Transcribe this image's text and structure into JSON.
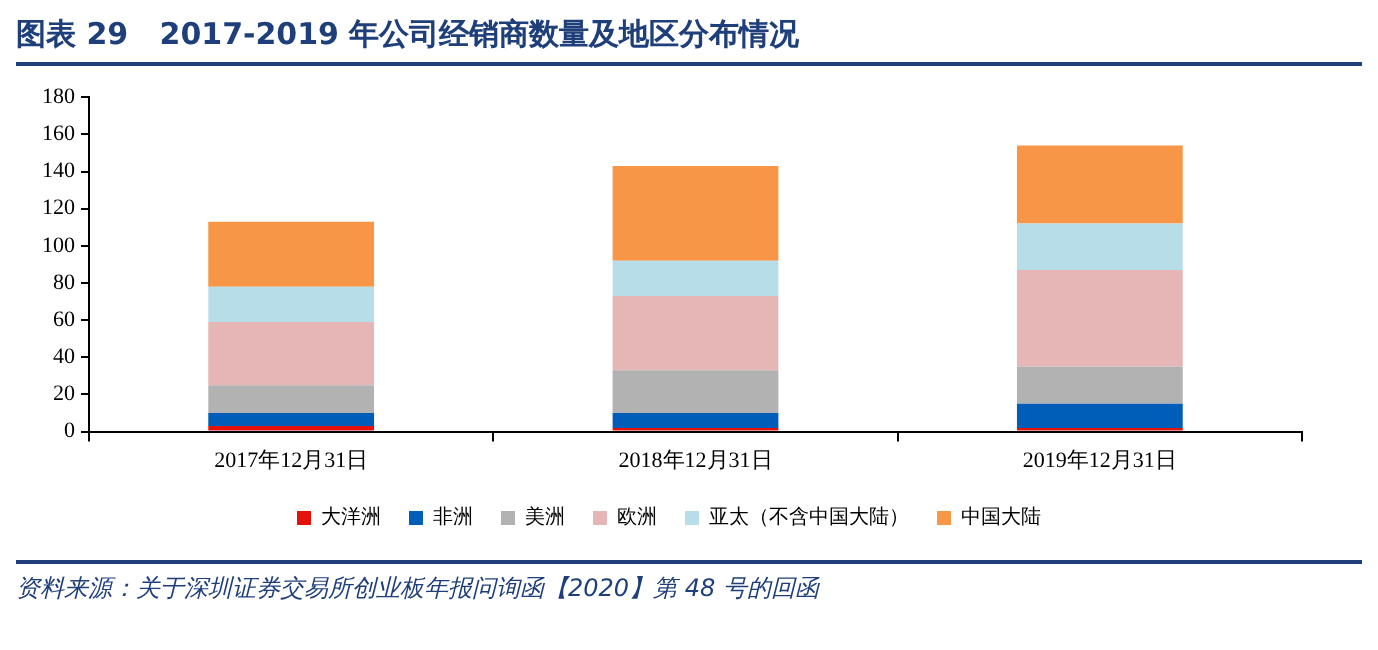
{
  "chart_data": {
    "type": "bar",
    "stacked": true,
    "title": "图表 29   2017-2019 年公司经销商数量及地区分布情况",
    "categories": [
      "2017年12月31日",
      "2018年12月31日",
      "2019年12月31日"
    ],
    "series": [
      {
        "name": "大洋洲",
        "color": "#e3120b",
        "values": [
          3,
          2,
          2
        ]
      },
      {
        "name": "非洲",
        "color": "#005eb8",
        "values": [
          7,
          8,
          13
        ]
      },
      {
        "name": "美洲",
        "color": "#b2b2b2",
        "values": [
          15,
          23,
          20
        ]
      },
      {
        "name": "欧洲",
        "color": "#e6b6b6",
        "values": [
          34,
          40,
          52
        ]
      },
      {
        "name": "亚太（不含中国大陆）",
        "color": "#b7dde8",
        "values": [
          19,
          19,
          25
        ]
      },
      {
        "name": "中国大陆",
        "color": "#f79646",
        "values": [
          35,
          51,
          42
        ]
      }
    ],
    "ylim": [
      0,
      180
    ],
    "yticks": [
      0,
      20,
      40,
      60,
      80,
      100,
      120,
      140,
      160,
      180
    ],
    "grid": false,
    "legend": "bottom",
    "annotations": [
      "资料来源：关于深圳证券交易所创业板年报问询函【2020】第 48 号的回函"
    ]
  }
}
